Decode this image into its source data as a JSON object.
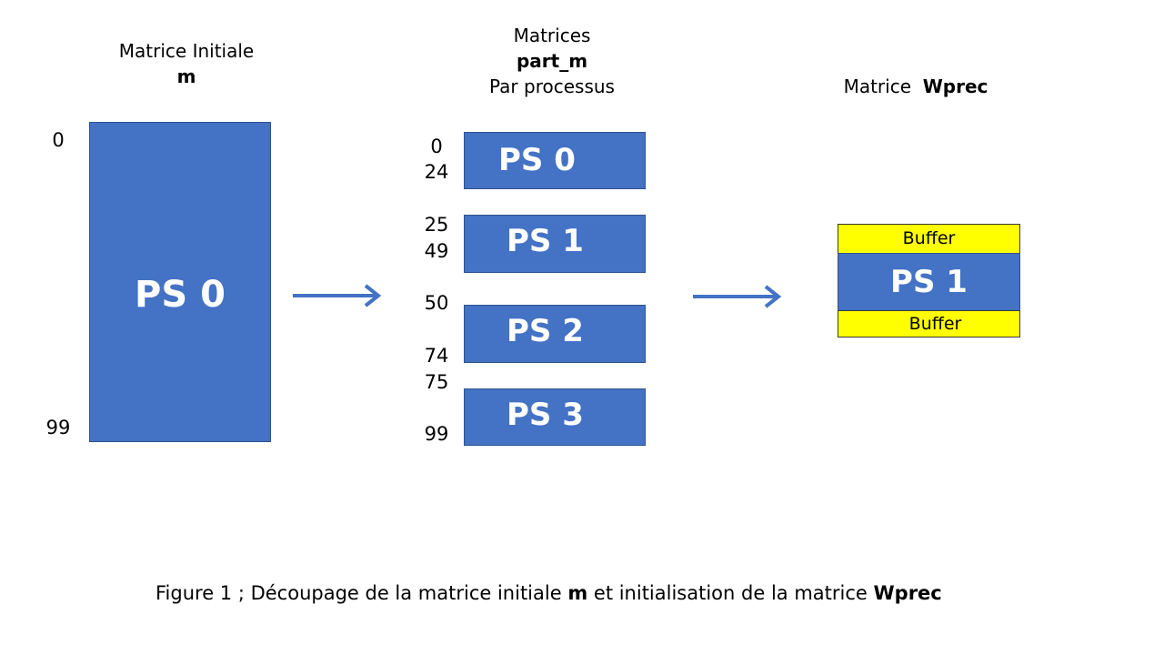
{
  "initial": {
    "title": "Matrice Initiale",
    "name": "m",
    "row_start": "0",
    "row_end": "99",
    "block_label": "PS 0"
  },
  "parts": {
    "title": "Matrices",
    "name": "part_m",
    "subtitle": "Par processus",
    "blocks": [
      {
        "label": "PS 0",
        "start": "0",
        "end": "24"
      },
      {
        "label": "PS 1",
        "start": "25",
        "end": "49"
      },
      {
        "label": "PS 2",
        "start": "50",
        "end": "74"
      },
      {
        "label": "PS 3",
        "start": "75",
        "end": "99"
      }
    ]
  },
  "wprec": {
    "title": "Matrice",
    "name": "Wprec",
    "buffer_top": "Buffer",
    "block_label": "PS 1",
    "buffer_bottom": "Buffer"
  },
  "caption": {
    "prefix": "Figure 1  ; Découpage de la matrice initiale ",
    "m": "m",
    "middle": " et initialisation de la matrice ",
    "wprec": "Wprec"
  },
  "colors": {
    "block": "#4472c4",
    "buffer": "#ffff00",
    "arrow": "#4472c4"
  }
}
